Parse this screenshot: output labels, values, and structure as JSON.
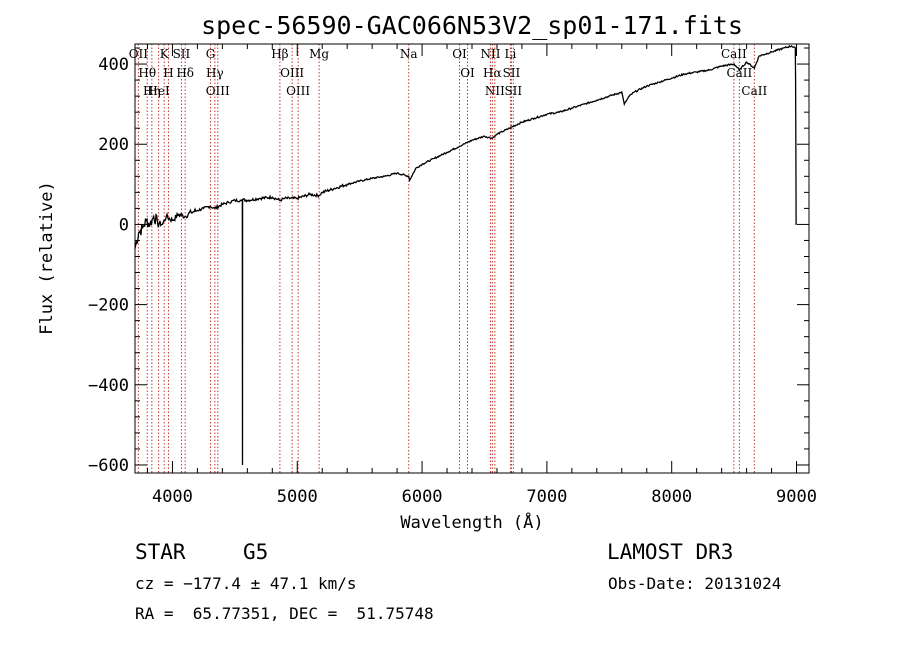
{
  "chart_data": {
    "type": "line",
    "title": "spec-56590-GAC066N53V2_sp01-171.fits",
    "xlabel": "Wavelength (Å)",
    "ylabel": "Flux (relative)",
    "xlim": [
      3700,
      9100
    ],
    "ylim": [
      -620,
      450
    ],
    "xticks": [
      4000,
      5000,
      6000,
      7000,
      8000,
      9000
    ],
    "yticks": [
      -600,
      -400,
      -200,
      0,
      200,
      400
    ],
    "series": [
      {
        "name": "spectrum",
        "x": [
          3700,
          3730,
          3760,
          3790,
          3820,
          3850,
          3880,
          3920,
          3950,
          4000,
          4050,
          4100,
          4150,
          4200,
          4250,
          4300,
          4340,
          4400,
          4450,
          4500,
          4550,
          4560,
          4561,
          4562,
          4600,
          4700,
          4800,
          4861,
          4900,
          5000,
          5100,
          5175,
          5200,
          5300,
          5400,
          5500,
          5600,
          5700,
          5800,
          5893,
          5900,
          5950,
          6000,
          6100,
          6200,
          6300,
          6400,
          6500,
          6563,
          6600,
          6700,
          6800,
          6900,
          7000,
          7100,
          7200,
          7300,
          7400,
          7500,
          7600,
          7620,
          7660,
          7700,
          7800,
          7900,
          8000,
          8100,
          8200,
          8300,
          8400,
          8500,
          8542,
          8600,
          8662,
          8700,
          8800,
          8900,
          8960,
          8990,
          8993,
          8996,
          8997,
          9000
        ],
        "y": [
          -60,
          -20,
          -10,
          10,
          0,
          20,
          5,
          0,
          20,
          10,
          25,
          20,
          30,
          35,
          40,
          45,
          40,
          50,
          55,
          60,
          60,
          62,
          -600,
          62,
          60,
          65,
          68,
          60,
          65,
          65,
          75,
          72,
          80,
          90,
          100,
          108,
          115,
          120,
          128,
          120,
          110,
          140,
          150,
          165,
          180,
          195,
          210,
          220,
          215,
          225,
          240,
          255,
          265,
          275,
          280,
          290,
          300,
          310,
          320,
          330,
          300,
          320,
          330,
          345,
          355,
          365,
          375,
          380,
          385,
          395,
          400,
          385,
          405,
          390,
          420,
          430,
          440,
          445,
          440,
          360,
          100,
          0,
          0
        ]
      }
    ],
    "lines": [
      {
        "name": "OII",
        "x": 3727
      },
      {
        "name": "Hθ",
        "x": 3798
      },
      {
        "name": "Hη",
        "x": 3835
      },
      {
        "name": "HeI",
        "x": 3889
      },
      {
        "name": "K",
        "x": 3934
      },
      {
        "name": "H",
        "x": 3968
      },
      {
        "name": "SII",
        "x": 4072
      },
      {
        "name": "Hδ",
        "x": 4102
      },
      {
        "name": "G",
        "x": 4305
      },
      {
        "name": "Hγ",
        "x": 4340
      },
      {
        "name": "OIII",
        "x": 4363
      },
      {
        "name": "Hβ",
        "x": 4861
      },
      {
        "name": "OIII",
        "x": 4959
      },
      {
        "name": "OIII",
        "x": 5007
      },
      {
        "name": "Mg",
        "x": 5175
      },
      {
        "name": "Na",
        "x": 5893
      },
      {
        "name": "OI",
        "x": 6300
      },
      {
        "name": "OI",
        "x": 6364
      },
      {
        "name": "NII",
        "x": 6548
      },
      {
        "name": "Hα",
        "x": 6563
      },
      {
        "name": "NII",
        "x": 6583
      },
      {
        "name": "Li",
        "x": 6708
      },
      {
        "name": "SII",
        "x": 6716
      },
      {
        "name": "SII",
        "x": 6731
      },
      {
        "name": "CaII",
        "x": 8498
      },
      {
        "name": "CaII",
        "x": 8542
      },
      {
        "name": "CaII",
        "x": 8662
      }
    ]
  },
  "info": {
    "class": "STAR",
    "subclass": "G5",
    "survey": "LAMOST DR3",
    "cz": "cz = −177.4 ± 47.1 km/s",
    "obs_date": "Obs-Date: 20131024",
    "coords": "RA =  65.77351, DEC =  51.75748"
  },
  "colors": {
    "line_marker": "#c0392b",
    "spectrum": "#000000",
    "axes": "#000000"
  }
}
